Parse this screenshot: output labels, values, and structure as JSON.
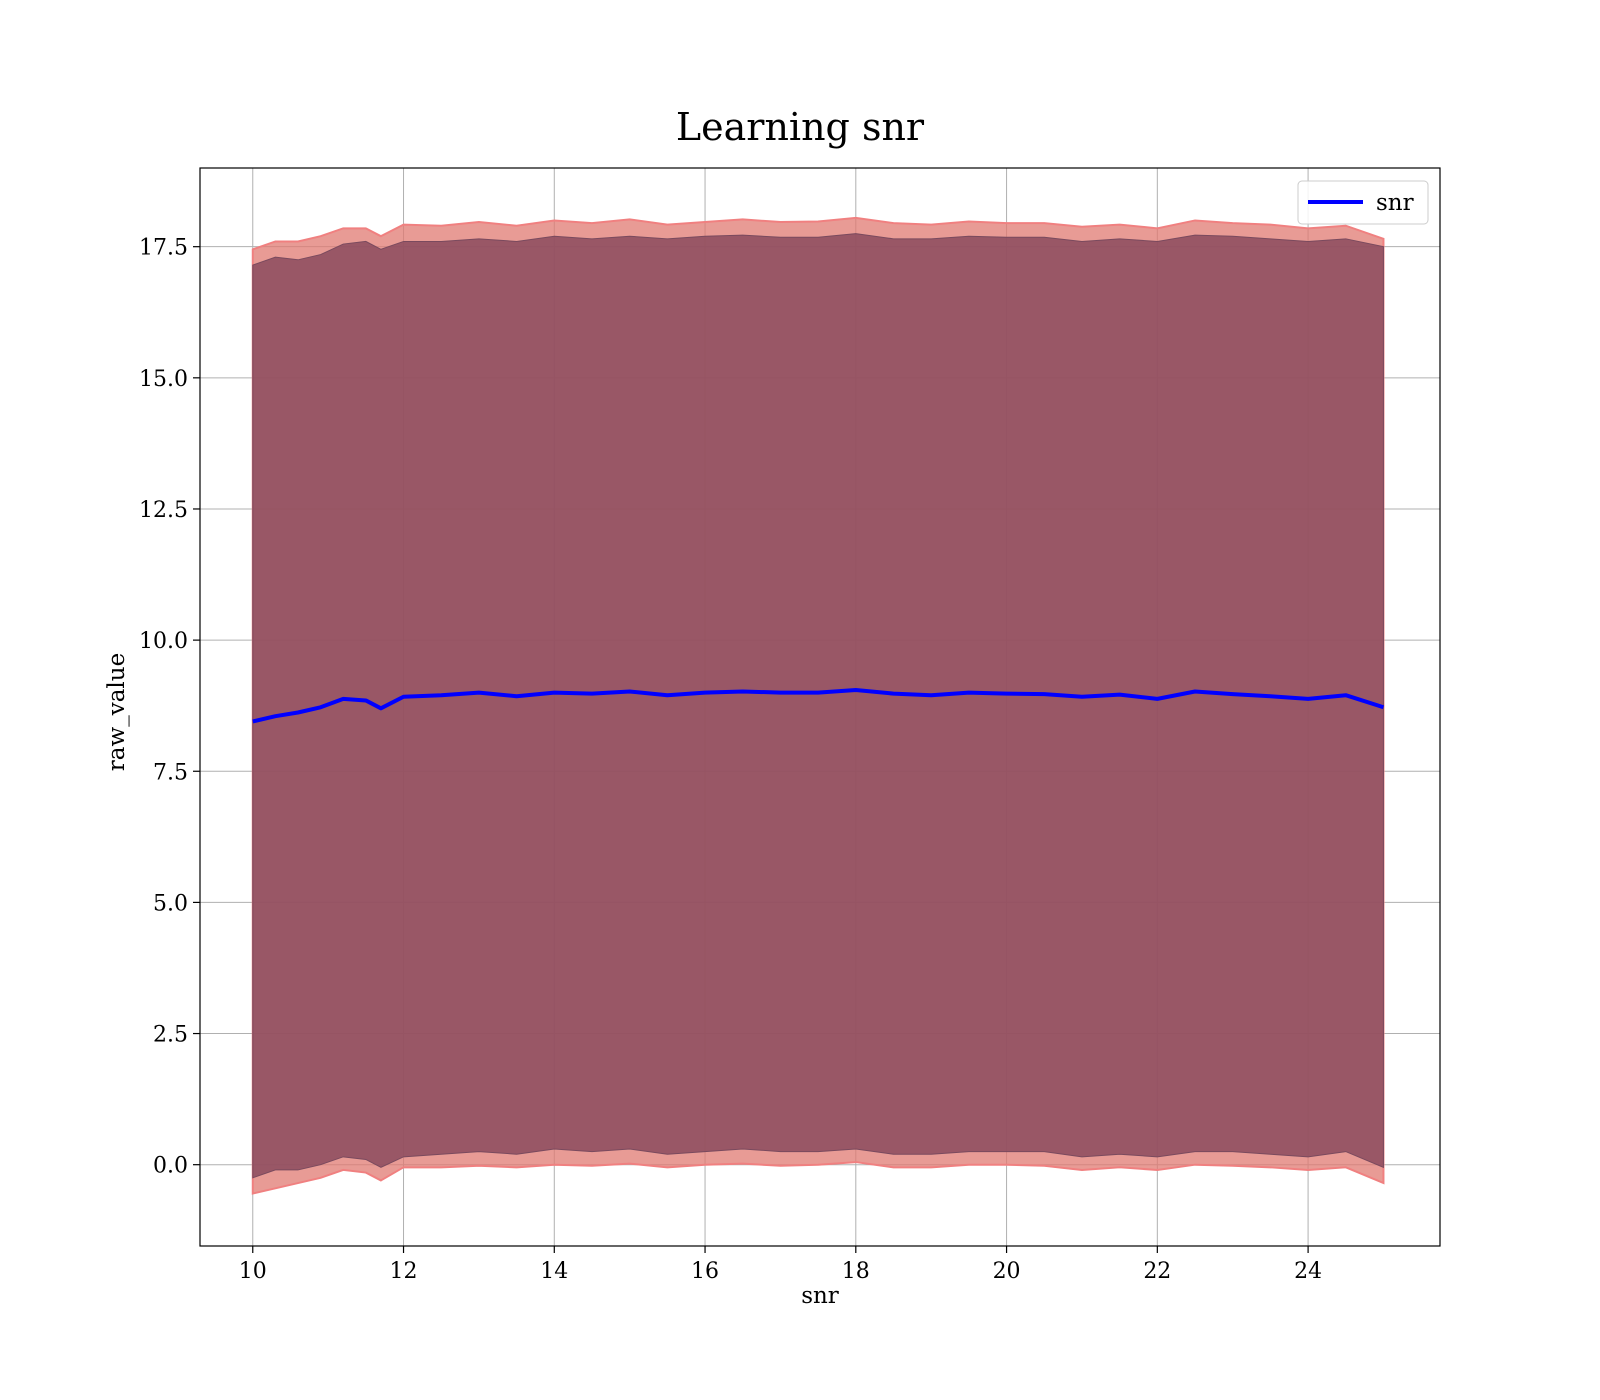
{
  "chart_data": {
    "type": "line",
    "title": "Learning snr",
    "xlabel": "snr",
    "ylabel": "raw_value",
    "xlim": [
      9.3,
      25.75
    ],
    "ylim": [
      -1.55,
      19.0
    ],
    "xticks": [
      10,
      12,
      14,
      16,
      18,
      20,
      22,
      24
    ],
    "yticks": [
      0.0,
      2.5,
      5.0,
      7.5,
      10.0,
      12.5,
      15.0,
      17.5
    ],
    "xtick_labels": [
      "10",
      "12",
      "14",
      "16",
      "18",
      "20",
      "22",
      "24"
    ],
    "ytick_labels": [
      "0.0",
      "2.5",
      "5.0",
      "7.5",
      "10.0",
      "12.5",
      "15.0",
      "17.5"
    ],
    "grid": true,
    "legend": {
      "placement": "top-right",
      "entries": [
        "snr"
      ]
    },
    "colors": {
      "line": "#0000ff",
      "band_outer": "#e07a72",
      "band_inner": "#8b4b5e",
      "grid": "#b0b0b0"
    },
    "series": [
      {
        "name": "snr",
        "x": [
          10.0,
          10.3,
          10.6,
          10.9,
          11.2,
          11.5,
          11.7,
          12.0,
          12.5,
          13.0,
          13.5,
          14.0,
          14.5,
          15.0,
          15.5,
          16.0,
          16.5,
          17.0,
          17.5,
          18.0,
          18.5,
          19.0,
          19.5,
          20.0,
          20.5,
          21.0,
          21.5,
          22.0,
          22.5,
          23.0,
          23.5,
          24.0,
          24.5,
          25.0
        ],
        "y": [
          8.45,
          8.55,
          8.62,
          8.72,
          8.88,
          8.85,
          8.7,
          8.92,
          8.95,
          9.0,
          8.93,
          9.0,
          8.98,
          9.02,
          8.95,
          9.0,
          9.02,
          9.0,
          9.0,
          9.05,
          8.98,
          8.95,
          9.0,
          8.98,
          8.97,
          8.92,
          8.96,
          8.88,
          9.02,
          8.97,
          8.93,
          8.88,
          8.95,
          8.72
        ],
        "inner_band": {
          "lower": [
            -0.25,
            -0.1,
            -0.1,
            0.0,
            0.15,
            0.1,
            -0.05,
            0.15,
            0.2,
            0.25,
            0.2,
            0.3,
            0.25,
            0.3,
            0.2,
            0.25,
            0.3,
            0.25,
            0.25,
            0.3,
            0.2,
            0.2,
            0.25,
            0.25,
            0.25,
            0.15,
            0.2,
            0.15,
            0.25,
            0.25,
            0.2,
            0.15,
            0.25,
            -0.05
          ],
          "upper": [
            17.15,
            17.3,
            17.25,
            17.35,
            17.55,
            17.6,
            17.45,
            17.6,
            17.6,
            17.65,
            17.6,
            17.7,
            17.65,
            17.7,
            17.65,
            17.7,
            17.72,
            17.68,
            17.68,
            17.75,
            17.65,
            17.65,
            17.7,
            17.68,
            17.68,
            17.6,
            17.65,
            17.6,
            17.72,
            17.7,
            17.65,
            17.6,
            17.65,
            17.5
          ]
        },
        "outer_band": {
          "lower": [
            -0.55,
            -0.45,
            -0.35,
            -0.25,
            -0.1,
            -0.15,
            -0.3,
            -0.05,
            -0.05,
            -0.02,
            -0.05,
            0.0,
            -0.02,
            0.02,
            -0.05,
            0.0,
            0.02,
            -0.02,
            0.0,
            0.05,
            -0.05,
            -0.05,
            0.0,
            0.0,
            -0.02,
            -0.1,
            -0.05,
            -0.1,
            0.0,
            -0.02,
            -0.05,
            -0.1,
            -0.05,
            -0.35
          ],
          "upper": [
            17.45,
            17.6,
            17.6,
            17.7,
            17.85,
            17.85,
            17.7,
            17.92,
            17.9,
            17.97,
            17.9,
            18.0,
            17.95,
            18.02,
            17.92,
            17.97,
            18.02,
            17.97,
            17.98,
            18.05,
            17.95,
            17.92,
            17.98,
            17.95,
            17.95,
            17.88,
            17.92,
            17.85,
            18.0,
            17.95,
            17.92,
            17.85,
            17.9,
            17.65
          ]
        }
      }
    ]
  }
}
